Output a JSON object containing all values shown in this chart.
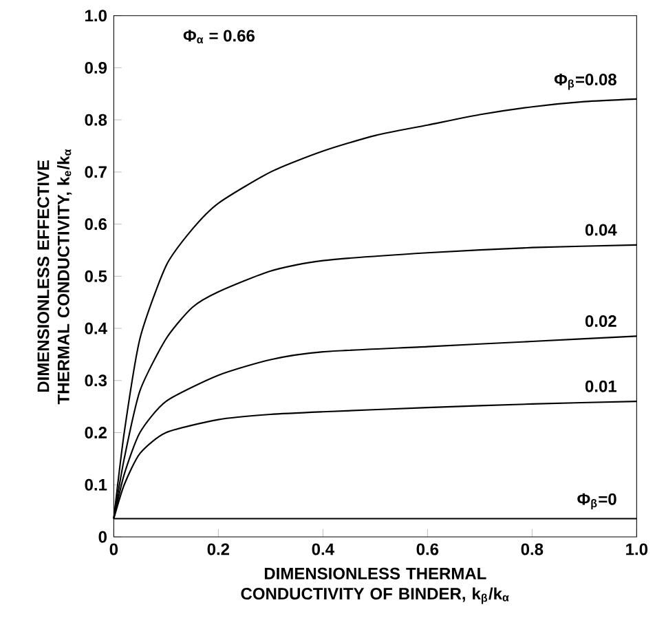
{
  "chart_data": {
    "type": "line",
    "xlabel": "DIMENSIONLESS THERMAL CONDUCTIVITY OF BINDER, k$_{β}$/k$_{α}$",
    "ylabel": "DIMENSIONLESS EFFECTIVE THERMAL CONDUCTIVITY, k$_{e}$/k$_{α}$",
    "annotations": [
      "Φ$_{α}$ = 0.66"
    ],
    "xlim": [
      0,
      1
    ],
    "ylim": [
      0,
      1
    ],
    "xticks": [
      0,
      0.2,
      0.4,
      0.6,
      0.8,
      {
        "value": 1,
        "label": "1.0"
      }
    ],
    "yticks": [
      0,
      0.1,
      0.2,
      0.3,
      0.4,
      0.5,
      0.6,
      0.7,
      0.8,
      0.9,
      {
        "value": 1,
        "label": "1.0"
      }
    ],
    "grid": false,
    "legend": false,
    "marker": "none",
    "line_style": "solid",
    "series": [
      {
        "name": "Φ$_{β}$=0.08",
        "color": "#000000",
        "x": [
          0,
          0.02,
          0.05,
          0.1,
          0.15,
          0.2,
          0.3,
          0.4,
          0.5,
          0.6,
          0.7,
          0.8,
          0.9,
          1.0
        ],
        "values": [
          0.035,
          0.2,
          0.38,
          0.52,
          0.59,
          0.64,
          0.7,
          0.74,
          0.77,
          0.79,
          0.81,
          0.825,
          0.835,
          0.84
        ]
      },
      {
        "name": "0.04",
        "color": "#000000",
        "x": [
          0,
          0.02,
          0.05,
          0.1,
          0.15,
          0.2,
          0.3,
          0.4,
          0.6,
          0.8,
          1.0
        ],
        "values": [
          0.035,
          0.15,
          0.28,
          0.38,
          0.44,
          0.47,
          0.51,
          0.53,
          0.545,
          0.555,
          0.56
        ]
      },
      {
        "name": "0.02",
        "color": "#000000",
        "x": [
          0,
          0.02,
          0.05,
          0.1,
          0.2,
          0.3,
          0.4,
          0.6,
          0.8,
          1.0
        ],
        "values": [
          0.035,
          0.12,
          0.2,
          0.26,
          0.31,
          0.34,
          0.355,
          0.365,
          0.375,
          0.385
        ]
      },
      {
        "name": "0.01",
        "color": "#000000",
        "x": [
          0,
          0.02,
          0.05,
          0.1,
          0.2,
          0.3,
          0.4,
          0.6,
          0.8,
          1.0
        ],
        "values": [
          0.035,
          0.1,
          0.16,
          0.2,
          0.225,
          0.235,
          0.24,
          0.248,
          0.255,
          0.26
        ]
      },
      {
        "name": "Φ$_{β}$=0",
        "color": "#000000",
        "x": [
          0,
          1.0
        ],
        "values": [
          0.035,
          0.035
        ]
      }
    ]
  }
}
